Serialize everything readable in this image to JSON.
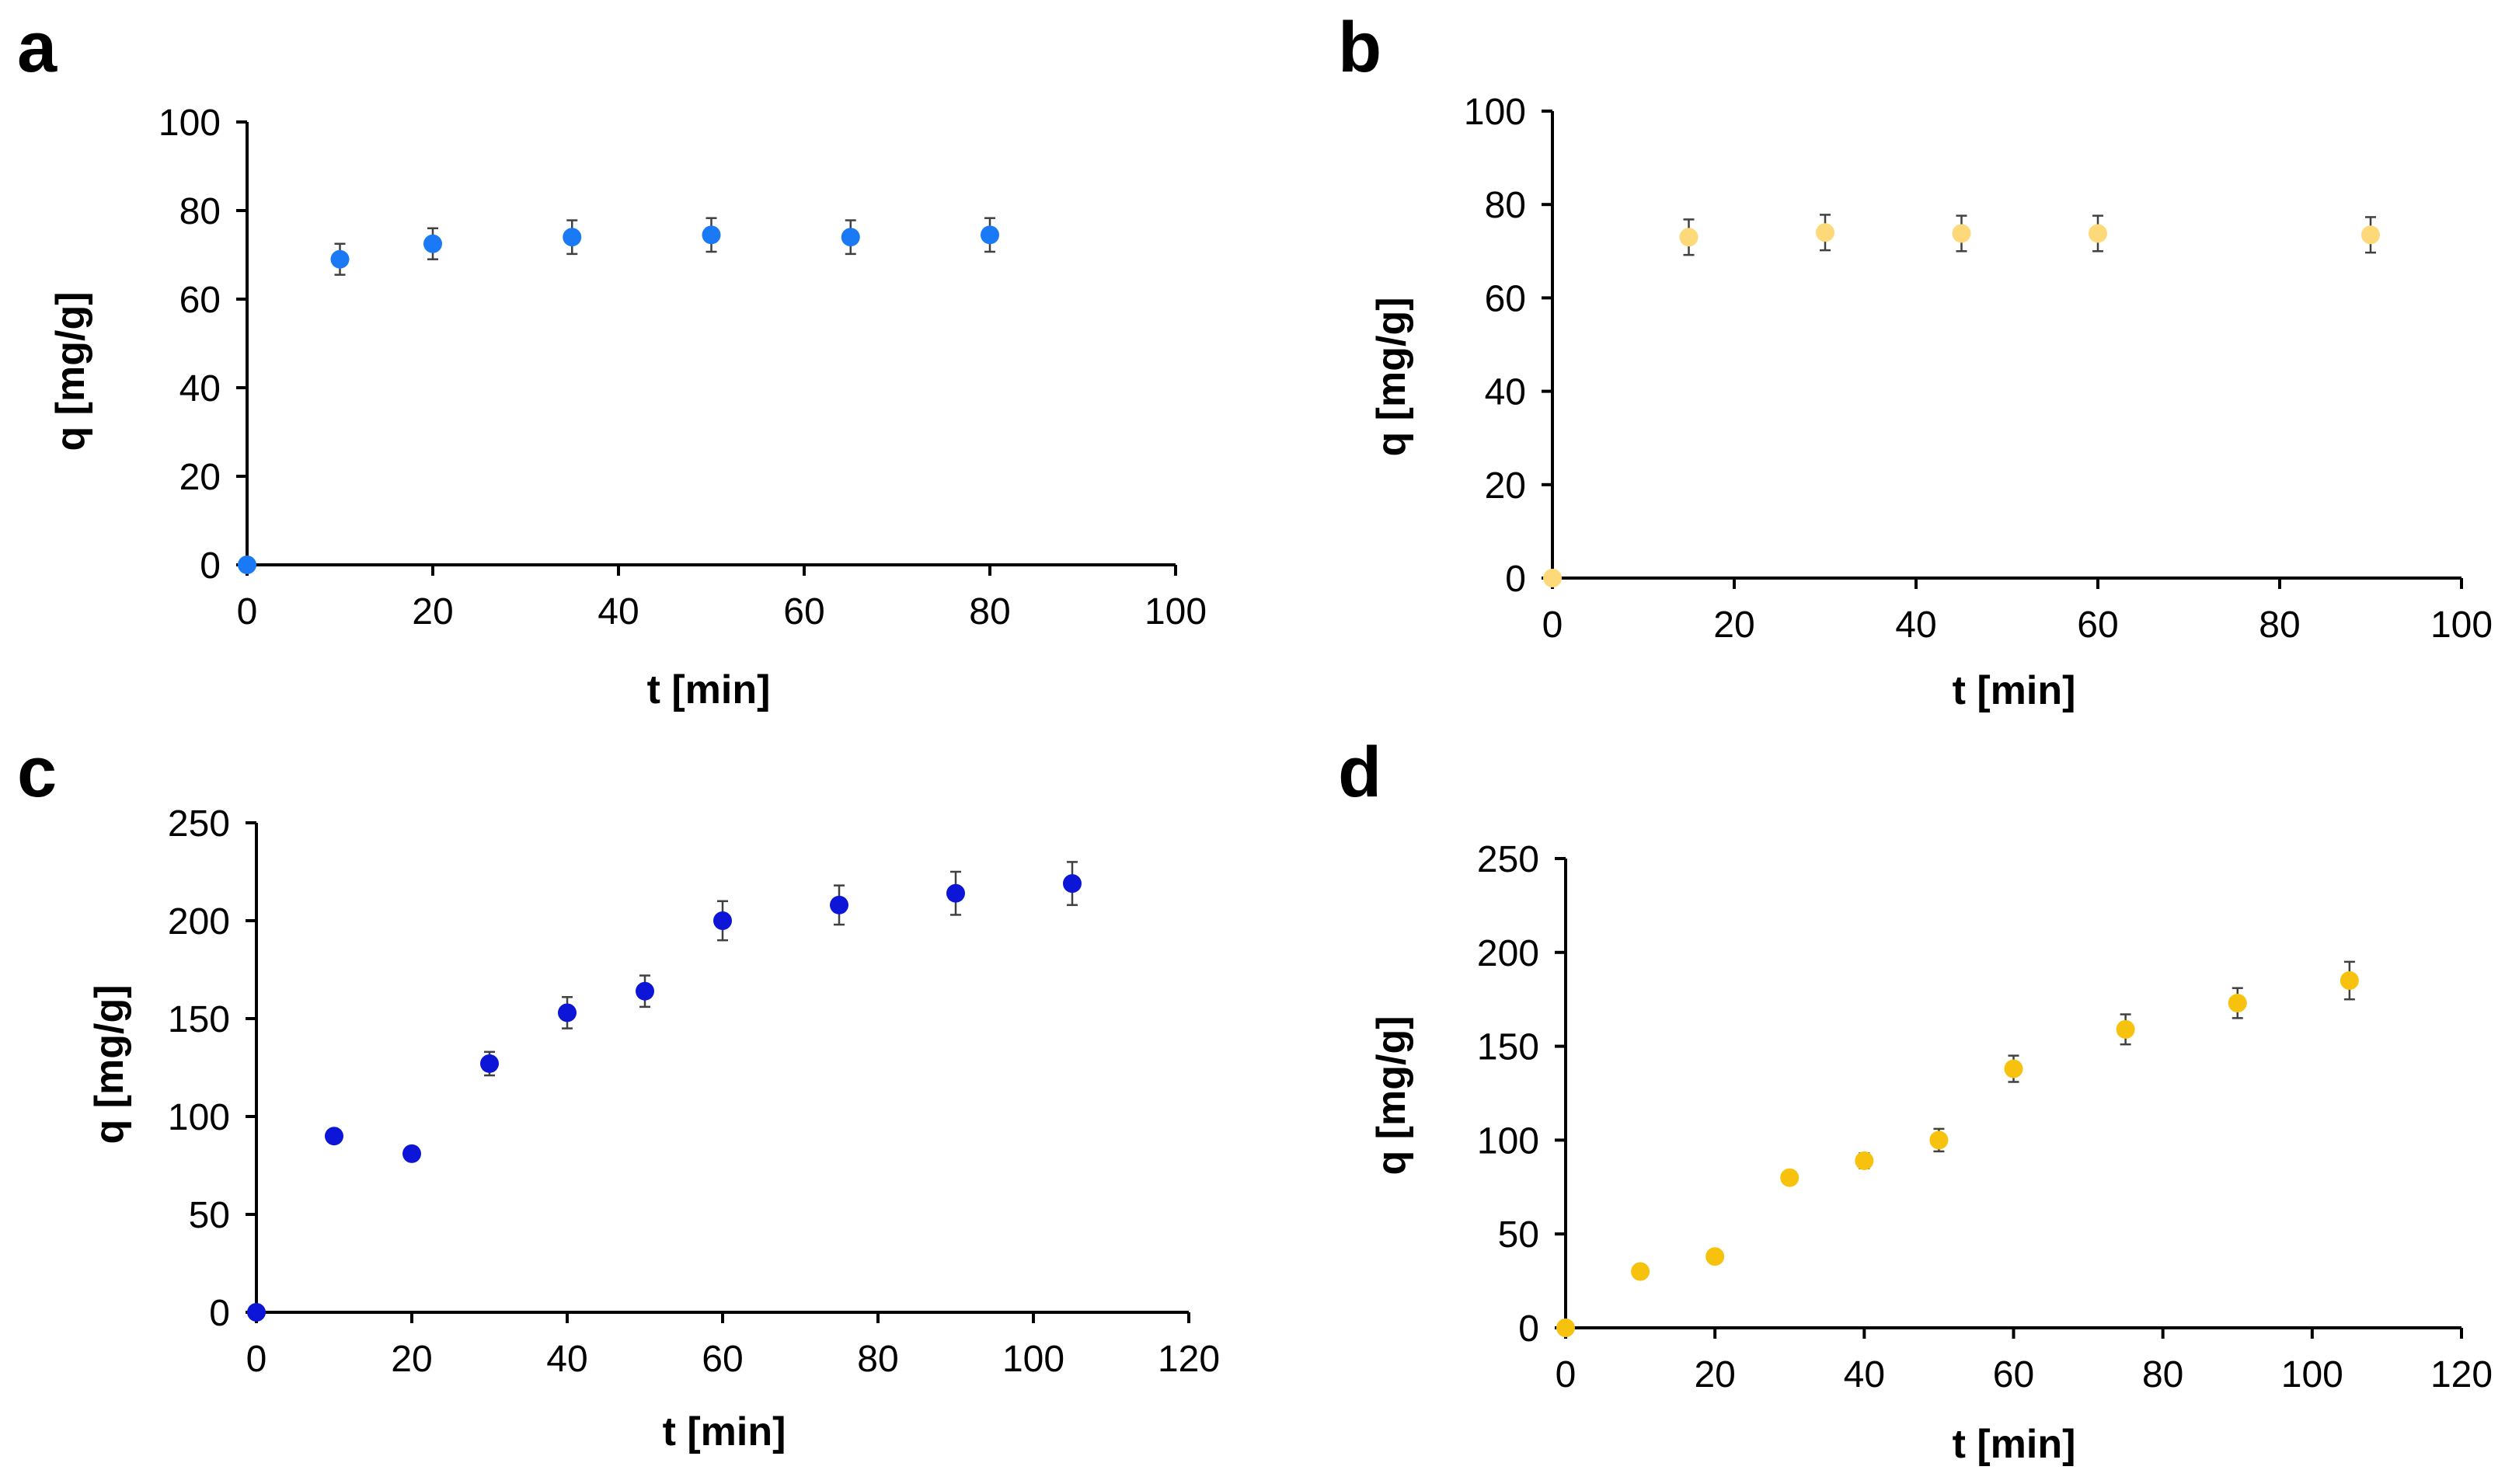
{
  "chart_data": [
    {
      "panel": "a",
      "type": "scatter",
      "xlabel": "t [min]",
      "ylabel": "q [mg/g]",
      "xlim": [
        0,
        100
      ],
      "ylim": [
        0,
        100
      ],
      "xticks": [
        0,
        20,
        40,
        60,
        80,
        100
      ],
      "yticks": [
        0,
        20,
        40,
        60,
        80,
        100
      ],
      "grid": false,
      "color": "#1a7af5",
      "series": [
        {
          "name": "q",
          "x": [
            0,
            10,
            20,
            35,
            50,
            65,
            80
          ],
          "y": [
            0,
            69,
            72.5,
            74,
            74.5,
            74,
            74.5
          ],
          "err": [
            0,
            3.5,
            3.5,
            3.8,
            3.8,
            3.8,
            3.8
          ]
        }
      ]
    },
    {
      "panel": "b",
      "type": "scatter",
      "xlabel": "t [min]",
      "ylabel": "q [mg/g]",
      "xlim": [
        0,
        100
      ],
      "ylim": [
        0,
        100
      ],
      "xticks": [
        0,
        20,
        40,
        60,
        80,
        100
      ],
      "yticks": [
        0,
        20,
        40,
        60,
        80,
        100
      ],
      "grid": false,
      "color": "#fdd97a",
      "series": [
        {
          "name": "q",
          "x": [
            0,
            15,
            30,
            45,
            60,
            90
          ],
          "y": [
            0,
            73,
            74,
            73.8,
            73.8,
            73.5
          ],
          "err": [
            0,
            3.8,
            3.8,
            3.8,
            3.8,
            3.8
          ]
        }
      ]
    },
    {
      "panel": "c",
      "type": "scatter",
      "xlabel": "t [min]",
      "ylabel": "q [mg/g]",
      "xlim": [
        0,
        120
      ],
      "ylim": [
        0,
        250
      ],
      "xticks": [
        0,
        20,
        40,
        60,
        80,
        100,
        120
      ],
      "yticks": [
        0,
        50,
        100,
        150,
        200,
        250
      ],
      "grid": false,
      "color": "#0d16d6",
      "series": [
        {
          "name": "q",
          "x": [
            0,
            10,
            20,
            30,
            40,
            50,
            60,
            75,
            90,
            105
          ],
          "y": [
            0,
            90,
            81,
            127,
            153,
            164,
            200,
            208,
            214,
            219
          ],
          "err": [
            0,
            0,
            0,
            6,
            8,
            8,
            10,
            10,
            11,
            11
          ]
        }
      ]
    },
    {
      "panel": "d",
      "type": "scatter",
      "xlabel": "t [min]",
      "ylabel": "q [mg/g]",
      "xlim": [
        0,
        120
      ],
      "ylim": [
        0,
        250
      ],
      "xticks": [
        0,
        20,
        40,
        60,
        80,
        100,
        120
      ],
      "yticks": [
        0,
        50,
        100,
        150,
        200,
        250
      ],
      "grid": false,
      "color": "#f7c20e",
      "series": [
        {
          "name": "q",
          "x": [
            0,
            10,
            20,
            30,
            40,
            50,
            60,
            75,
            90,
            105
          ],
          "y": [
            0,
            30,
            38,
            80,
            89,
            100,
            138,
            159,
            173,
            185
          ],
          "err": [
            0,
            0,
            0,
            0,
            4,
            6,
            7,
            8,
            8,
            10
          ]
        }
      ]
    }
  ]
}
